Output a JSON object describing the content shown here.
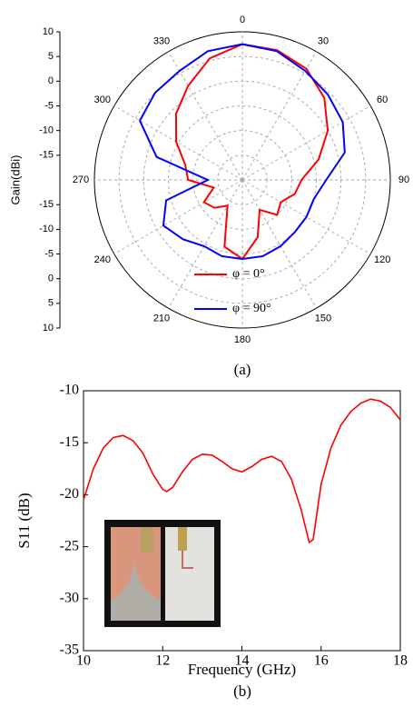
{
  "chart_data": [
    {
      "type": "polar",
      "ylabel": "Gain(dBi)",
      "caption": "(a)",
      "x": [
        0,
        15,
        30,
        45,
        60,
        75,
        90,
        105,
        120,
        135,
        150,
        165,
        180,
        195,
        210,
        225,
        240,
        255,
        270,
        285,
        300,
        315,
        330,
        345
      ],
      "xticks": [
        0,
        30,
        60,
        90,
        120,
        150,
        180,
        210,
        240,
        270,
        300,
        330
      ],
      "ylim": [
        -20,
        10
      ],
      "yticks": [
        -15,
        -10,
        -5,
        0,
        5,
        10
      ],
      "grid": true,
      "series": [
        {
          "name": "φ = 0°",
          "color": "#ff0000",
          "values": [
            7.5,
            7.2,
            6,
            3.5,
            0,
            -4,
            -8,
            -9,
            -11,
            -10,
            -13,
            -8,
            -4,
            -6,
            -14,
            -12,
            -11,
            -14,
            -9,
            -8,
            -4.5,
            -1,
            2,
            5.5
          ]
        },
        {
          "name": "φ = 90°",
          "color": "#0000ff",
          "values": [
            7.5,
            7,
            5.5,
            4.5,
            3.5,
            1.5,
            -3,
            -5,
            -5,
            -5,
            -4.5,
            -4,
            -4,
            -4,
            -4.5,
            -3,
            -1.5,
            -4,
            -13,
            -2,
            4,
            5,
            5.5,
            7
          ]
        }
      ]
    },
    {
      "type": "line",
      "xlabel": "Frequency (GHz)",
      "ylabel": "S11 (dB)",
      "caption": "(b)",
      "x": [
        10,
        10.25,
        10.5,
        10.75,
        11,
        11.25,
        11.5,
        11.75,
        12,
        12.1,
        12.25,
        12.5,
        12.75,
        13,
        13.25,
        13.5,
        13.75,
        14,
        14.25,
        14.5,
        14.75,
        15,
        15.25,
        15.5,
        15.7,
        15.8,
        16,
        16.25,
        16.5,
        16.75,
        17,
        17.25,
        17.5,
        17.75,
        18
      ],
      "xlim": [
        10,
        18
      ],
      "xticks": [
        10,
        12,
        14,
        16,
        18
      ],
      "ylim": [
        -35,
        -10
      ],
      "yticks": [
        -35,
        -30,
        -25,
        -20,
        -15,
        -10
      ],
      "series": [
        {
          "color": "#ff0000",
          "values": [
            -20.5,
            -17.5,
            -15.5,
            -14.5,
            -14.3,
            -14.8,
            -16,
            -18,
            -19.5,
            -19.7,
            -19.3,
            -17.8,
            -16.6,
            -16.1,
            -16.2,
            -16.8,
            -17.5,
            -17.8,
            -17.3,
            -16.6,
            -16.3,
            -16.8,
            -18.5,
            -21.5,
            -24.6,
            -24.3,
            -19,
            -15.5,
            -13.3,
            -12,
            -11.2,
            -10.8,
            -11,
            -11.6,
            -12.8
          ]
        }
      ]
    }
  ]
}
